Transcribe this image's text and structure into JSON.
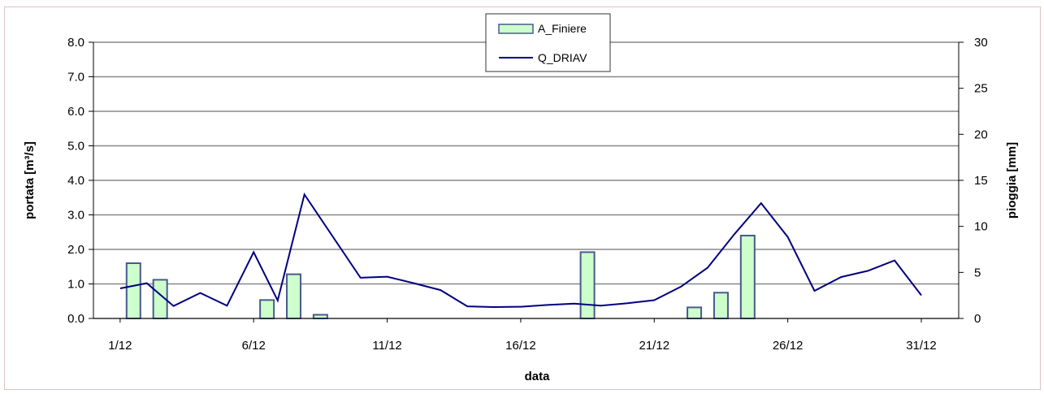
{
  "chart_data": {
    "type": "bar+line",
    "xlabel": "data",
    "y_left_label": "portata [m³/s]",
    "y_right_label": "pioggia [mm]",
    "y_left_lim": [
      0,
      8
    ],
    "y_right_lim": [
      0,
      30
    ],
    "y_left_ticks": [
      "0.0",
      "1.0",
      "2.0",
      "3.0",
      "4.0",
      "5.0",
      "6.0",
      "7.0",
      "8.0"
    ],
    "y_right_ticks": [
      "0",
      "5",
      "10",
      "15",
      "20",
      "25",
      "30"
    ],
    "x_tick_labels": [
      {
        "day": 1,
        "label": "1/12"
      },
      {
        "day": 6,
        "label": "6/12"
      },
      {
        "day": 11,
        "label": "11/12"
      },
      {
        "day": 16,
        "label": "16/12"
      },
      {
        "day": 21,
        "label": "21/12"
      },
      {
        "day": 26,
        "label": "26/12"
      },
      {
        "day": 31,
        "label": "31/12"
      }
    ],
    "grid": true,
    "legend_position": "top-center",
    "series": [
      {
        "name": "A_Finiere",
        "type": "bar",
        "axis": "right",
        "color": "#ccffcc",
        "edge_color": "#4a5a8c",
        "points": [
          {
            "day": 1.5,
            "value": 6.0
          },
          {
            "day": 2.5,
            "value": 4.2
          },
          {
            "day": 6.5,
            "value": 2.0
          },
          {
            "day": 7.5,
            "value": 4.8
          },
          {
            "day": 8.5,
            "value": 0.4
          },
          {
            "day": 18.5,
            "value": 7.2
          },
          {
            "day": 22.5,
            "value": 1.2
          },
          {
            "day": 23.5,
            "value": 2.8
          },
          {
            "day": 24.5,
            "value": 9.0
          }
        ]
      },
      {
        "name": "Q_DRIAV",
        "type": "line",
        "axis": "left",
        "color": "#000080",
        "points": [
          {
            "day": 1,
            "value": 0.87
          },
          {
            "day": 2,
            "value": 1.02
          },
          {
            "day": 3,
            "value": 0.36
          },
          {
            "day": 4,
            "value": 0.74
          },
          {
            "day": 5,
            "value": 0.37
          },
          {
            "day": 6,
            "value": 1.92
          },
          {
            "day": 6.9,
            "value": 0.52
          },
          {
            "day": 7.9,
            "value": 3.59
          },
          {
            "day": 10,
            "value": 1.18
          },
          {
            "day": 11,
            "value": 1.21
          },
          {
            "day": 12,
            "value": 1.02
          },
          {
            "day": 13,
            "value": 0.82
          },
          {
            "day": 14,
            "value": 0.35
          },
          {
            "day": 15,
            "value": 0.33
          },
          {
            "day": 16,
            "value": 0.34
          },
          {
            "day": 17,
            "value": 0.39
          },
          {
            "day": 18,
            "value": 0.43
          },
          {
            "day": 19,
            "value": 0.37
          },
          {
            "day": 20,
            "value": 0.44
          },
          {
            "day": 21,
            "value": 0.53
          },
          {
            "day": 22,
            "value": 0.92
          },
          {
            "day": 23,
            "value": 1.47
          },
          {
            "day": 24,
            "value": 2.44
          },
          {
            "day": 25,
            "value": 3.34
          },
          {
            "day": 26,
            "value": 2.36
          },
          {
            "day": 27,
            "value": 0.8
          },
          {
            "day": 28,
            "value": 1.2
          },
          {
            "day": 29,
            "value": 1.38
          },
          {
            "day": 30,
            "value": 1.68
          },
          {
            "day": 31,
            "value": 0.67
          }
        ]
      }
    ]
  }
}
